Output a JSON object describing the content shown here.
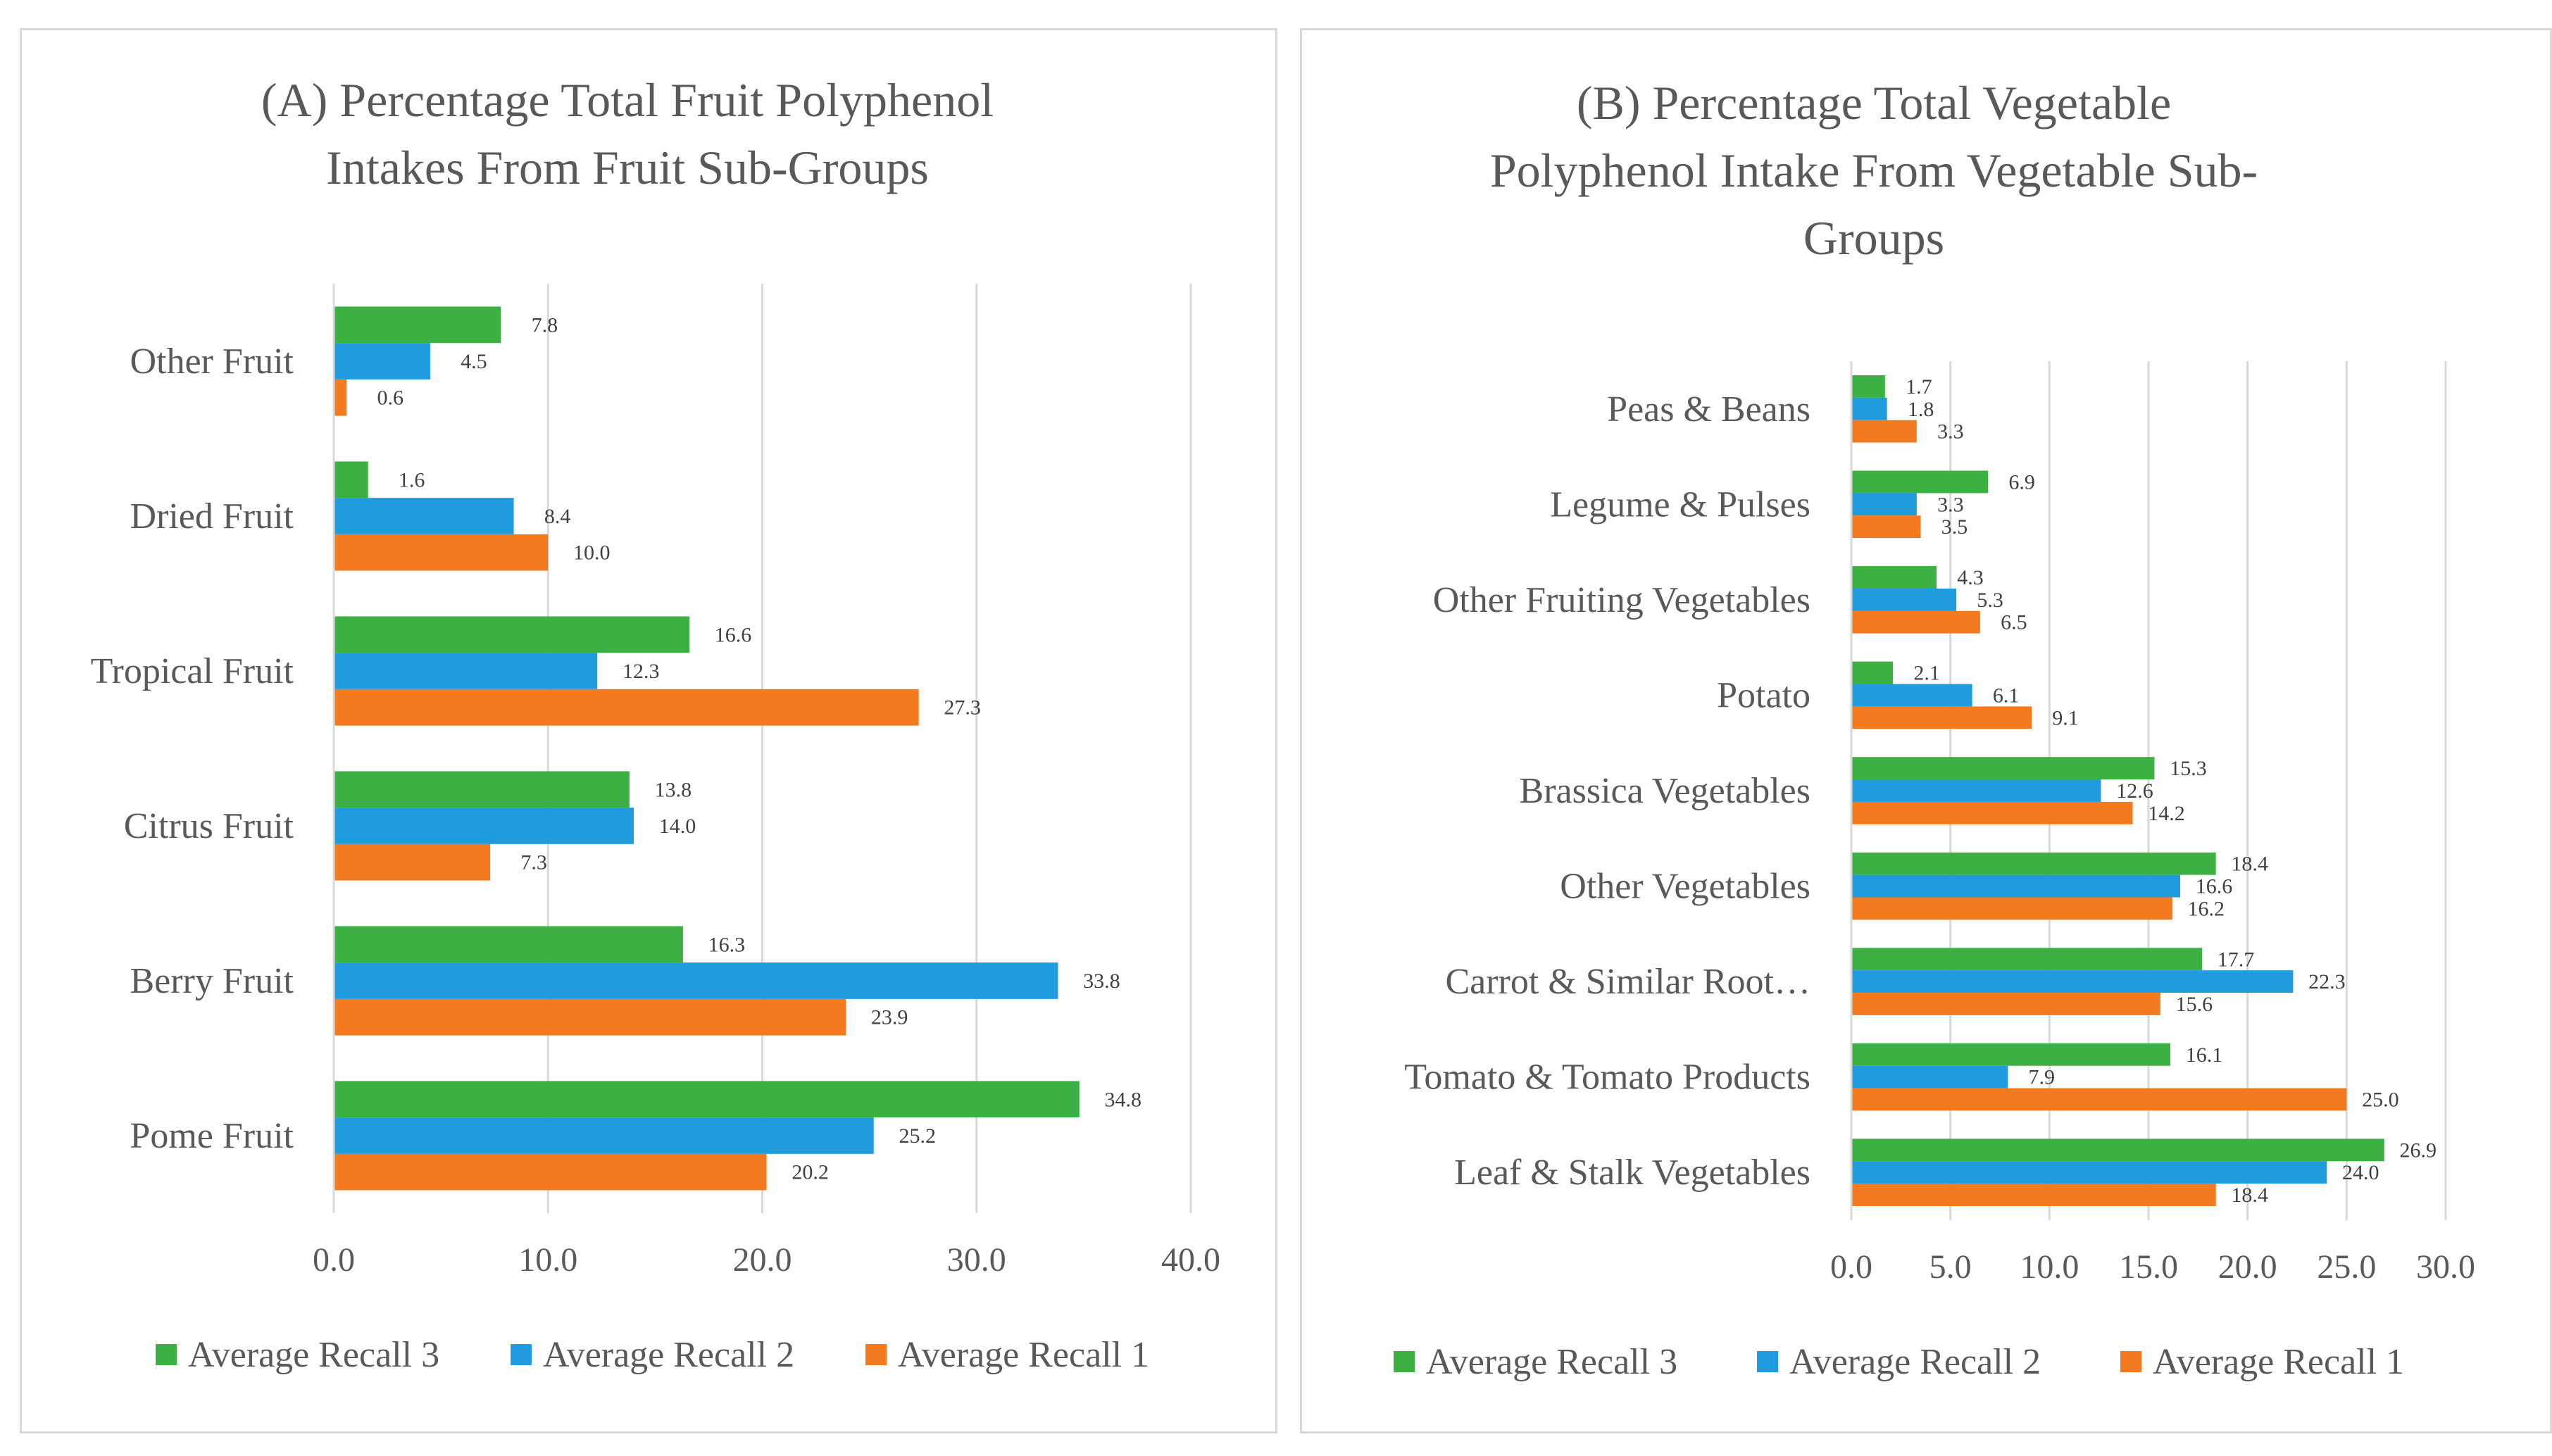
{
  "chart_data": [
    {
      "type": "bar",
      "orientation": "horizontal",
      "title": [
        "(A) Percentage Total Fruit Polyphenol",
        "Intakes From Fruit Sub-Groups"
      ],
      "categories": [
        "Other Fruit",
        "Dried Fruit",
        "Tropical Fruit",
        "Citrus Fruit",
        "Berry Fruit",
        "Pome Fruit"
      ],
      "series": [
        {
          "name": "Average Recall 3",
          "color": "#3cb043",
          "values": [
            7.8,
            1.6,
            16.6,
            13.8,
            16.3,
            34.8
          ],
          "labels": [
            "7.8",
            "1.6",
            "16.6",
            "13.8",
            "16.3",
            "34.8"
          ]
        },
        {
          "name": "Average Recall 2",
          "color": "#1f9bde",
          "values": [
            4.5,
            8.4,
            12.3,
            14.0,
            33.8,
            25.2
          ],
          "labels": [
            "4.5",
            "8.4",
            "12.3",
            "14.0",
            "33.8",
            "25.2"
          ]
        },
        {
          "name": "Average Recall 1",
          "color": "#f47a20",
          "values": [
            0.6,
            10.0,
            27.3,
            7.3,
            23.9,
            20.2
          ],
          "labels": [
            "0.6",
            "10.0",
            "27.3",
            "7.3",
            "23.9",
            "20.2"
          ]
        }
      ],
      "xlim": [
        0,
        40
      ],
      "ticks": [
        "0.0",
        "10.0",
        "20.0",
        "30.0",
        "40.0"
      ],
      "legend": [
        "Average Recall 3",
        "Average Recall 2",
        "Average Recall 1"
      ],
      "grid": true
    },
    {
      "type": "bar",
      "orientation": "horizontal",
      "title": [
        "(B) Percentage Total Vegetable",
        "Polyphenol Intake From Vegetable Sub-",
        "Groups"
      ],
      "categories": [
        "Peas & Beans",
        "Legume & Pulses",
        "Other Fruiting Vegetables",
        "Potato",
        "Brassica Vegetables",
        "Other Vegetables",
        "Carrot & Similar Root…",
        "Tomato & Tomato Products",
        "Leaf & Stalk Vegetables"
      ],
      "series": [
        {
          "name": "Average Recall 3",
          "color": "#3cb043",
          "values": [
            1.7,
            6.9,
            4.3,
            2.1,
            15.3,
            18.4,
            17.7,
            16.1,
            26.9
          ],
          "labels": [
            "1.7",
            "6.9",
            "4.3",
            "2.1",
            "15.3",
            "18.4",
            "17.7",
            "16.1",
            "26.9"
          ]
        },
        {
          "name": "Average Recall 2",
          "color": "#1f9bde",
          "values": [
            1.8,
            3.3,
            5.3,
            6.1,
            12.6,
            16.6,
            22.3,
            7.9,
            24.0
          ],
          "labels": [
            "1.8",
            "3.3",
            "5.3",
            "6.1",
            "12.6",
            "16.6",
            "22.3",
            "7.9",
            "24.0"
          ]
        },
        {
          "name": "Average Recall 1",
          "color": "#f47a20",
          "values": [
            3.3,
            3.5,
            6.5,
            9.1,
            14.2,
            16.2,
            15.6,
            25.0,
            18.4
          ],
          "labels": [
            "3.3",
            "3.5",
            "6.5",
            "9.1",
            "14.2",
            "16.2",
            "15.6",
            "25.0",
            "18.4"
          ]
        }
      ],
      "xlim": [
        0,
        30
      ],
      "ticks": [
        "0.0",
        "5.0",
        "10.0",
        "15.0",
        "20.0",
        "25.0",
        "30.0"
      ],
      "legend": [
        "Average Recall 3",
        "Average Recall 2",
        "Average Recall 1"
      ],
      "grid": true
    }
  ]
}
